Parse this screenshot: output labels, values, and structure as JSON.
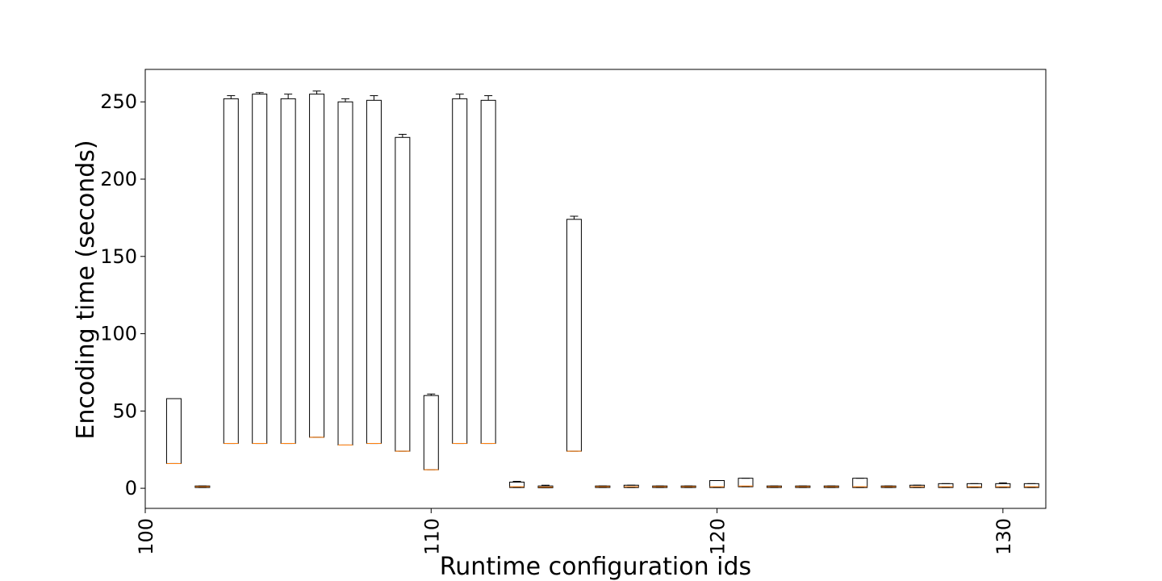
{
  "chart_data": {
    "type": "box",
    "title": "",
    "xlabel": "Runtime configuration ids",
    "ylabel": "Encoding time (seconds)",
    "xlim": [
      100,
      131.5
    ],
    "ylim": [
      -13,
      271
    ],
    "xticks": [
      100,
      110,
      120,
      130
    ],
    "yticks": [
      0,
      50,
      100,
      150,
      200,
      250
    ],
    "grid": false,
    "colors": {
      "box": "#000000",
      "median": "#ff7f0e"
    },
    "boxes": [
      {
        "id": 101,
        "q1": 16,
        "median": 16,
        "q3": 58,
        "whisker_low": 16,
        "whisker_high": 58
      },
      {
        "id": 102,
        "q1": 0.5,
        "median": 1,
        "q3": 1.5,
        "whisker_low": 0.5,
        "whisker_high": 1.5
      },
      {
        "id": 103,
        "q1": 29,
        "median": 29,
        "q3": 252,
        "whisker_low": 29,
        "whisker_high": 254
      },
      {
        "id": 104,
        "q1": 29,
        "median": 29,
        "q3": 255,
        "whisker_low": 29,
        "whisker_high": 256
      },
      {
        "id": 105,
        "q1": 29,
        "median": 29,
        "q3": 252,
        "whisker_low": 29,
        "whisker_high": 255
      },
      {
        "id": 106,
        "q1": 33,
        "median": 33,
        "q3": 255,
        "whisker_low": 33,
        "whisker_high": 257
      },
      {
        "id": 107,
        "q1": 28,
        "median": 28,
        "q3": 250,
        "whisker_low": 28,
        "whisker_high": 252
      },
      {
        "id": 108,
        "q1": 29,
        "median": 29,
        "q3": 251,
        "whisker_low": 29,
        "whisker_high": 254
      },
      {
        "id": 109,
        "q1": 24,
        "median": 24,
        "q3": 227,
        "whisker_low": 24,
        "whisker_high": 229
      },
      {
        "id": 110,
        "q1": 12,
        "median": 12,
        "q3": 60,
        "whisker_low": 12,
        "whisker_high": 61
      },
      {
        "id": 111,
        "q1": 29,
        "median": 29,
        "q3": 252,
        "whisker_low": 29,
        "whisker_high": 255
      },
      {
        "id": 112,
        "q1": 29,
        "median": 29,
        "q3": 251,
        "whisker_low": 29,
        "whisker_high": 254
      },
      {
        "id": 113,
        "q1": 0.5,
        "median": 1,
        "q3": 4,
        "whisker_low": 0.5,
        "whisker_high": 4.5
      },
      {
        "id": 114,
        "q1": 0.3,
        "median": 0.8,
        "q3": 1.5,
        "whisker_low": 0.3,
        "whisker_high": 2
      },
      {
        "id": 115,
        "q1": 24,
        "median": 24,
        "q3": 174,
        "whisker_low": 24,
        "whisker_high": 176
      },
      {
        "id": 116,
        "q1": 0.5,
        "median": 1,
        "q3": 1.5,
        "whisker_low": 0.5,
        "whisker_high": 1.5
      },
      {
        "id": 117,
        "q1": 0.5,
        "median": 1,
        "q3": 2,
        "whisker_low": 0.5,
        "whisker_high": 2
      },
      {
        "id": 118,
        "q1": 0.5,
        "median": 1,
        "q3": 1.5,
        "whisker_low": 0.5,
        "whisker_high": 1.5
      },
      {
        "id": 119,
        "q1": 0.5,
        "median": 1,
        "q3": 1.5,
        "whisker_low": 0.5,
        "whisker_high": 1.5
      },
      {
        "id": 120,
        "q1": 0.5,
        "median": 1,
        "q3": 5,
        "whisker_low": 0.5,
        "whisker_high": 5
      },
      {
        "id": 121,
        "q1": 1,
        "median": 1.5,
        "q3": 6.5,
        "whisker_low": 1,
        "whisker_high": 6.5
      },
      {
        "id": 122,
        "q1": 0.5,
        "median": 1,
        "q3": 1.5,
        "whisker_low": 0.5,
        "whisker_high": 1.5
      },
      {
        "id": 123,
        "q1": 0.5,
        "median": 1,
        "q3": 1.5,
        "whisker_low": 0.5,
        "whisker_high": 1.5
      },
      {
        "id": 124,
        "q1": 0.5,
        "median": 1,
        "q3": 1.5,
        "whisker_low": 0.5,
        "whisker_high": 1.5
      },
      {
        "id": 125,
        "q1": 0.5,
        "median": 1,
        "q3": 6.5,
        "whisker_low": 0.5,
        "whisker_high": 6.5
      },
      {
        "id": 126,
        "q1": 0.5,
        "median": 1,
        "q3": 1.5,
        "whisker_low": 0.5,
        "whisker_high": 1.5
      },
      {
        "id": 127,
        "q1": 0.5,
        "median": 1,
        "q3": 2,
        "whisker_low": 0.5,
        "whisker_high": 2
      },
      {
        "id": 128,
        "q1": 0.5,
        "median": 1,
        "q3": 3,
        "whisker_low": 0.5,
        "whisker_high": 3
      },
      {
        "id": 129,
        "q1": 0.5,
        "median": 1,
        "q3": 3,
        "whisker_low": 0.5,
        "whisker_high": 3
      },
      {
        "id": 130,
        "q1": 0.5,
        "median": 1,
        "q3": 3,
        "whisker_low": 0.5,
        "whisker_high": 3.5
      },
      {
        "id": 131,
        "q1": 0.5,
        "median": 1,
        "q3": 3,
        "whisker_low": 0.5,
        "whisker_high": 3
      }
    ]
  }
}
